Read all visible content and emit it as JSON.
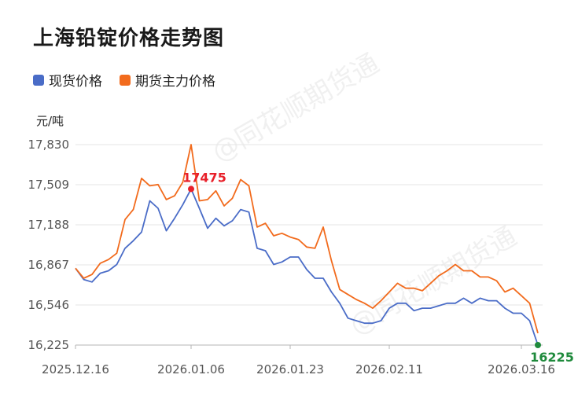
{
  "title": "上海铅锭价格走势图",
  "unit_label": "元/吨",
  "watermark": "@同花顺期货通",
  "colors": {
    "spot": "#4a6cc7",
    "futures": "#f26b1d",
    "peak_marker": "#e8202a",
    "last_marker": "#1f8a3c"
  },
  "chart_data": {
    "type": "line",
    "title": "上海铅锭价格走势图",
    "xlabel": "",
    "ylabel": "元/吨",
    "ylim": [
      16225,
      17830
    ],
    "yticks": [
      16225,
      16546,
      16867,
      17188,
      17509,
      17830
    ],
    "ytick_labels": [
      "16,225",
      "16,546",
      "16,867",
      "17,188",
      "17,509",
      "17,830"
    ],
    "xtick_labels": [
      "2025.12.16",
      "2026.01.06",
      "2026.01.23",
      "2026.02.11",
      "2026.03.16"
    ],
    "xtick_index": [
      0,
      14,
      26,
      38,
      54
    ],
    "legend_position": "top-left",
    "grid": true,
    "series": [
      {
        "name": "现货价格",
        "key": "spot",
        "values": [
          16840,
          16750,
          16730,
          16800,
          16820,
          16870,
          17000,
          17060,
          17130,
          17380,
          17320,
          17140,
          17240,
          17350,
          17475,
          17320,
          17160,
          17240,
          17180,
          17220,
          17310,
          17290,
          17000,
          16980,
          16870,
          16890,
          16930,
          16930,
          16830,
          16760,
          16760,
          16650,
          16560,
          16440,
          16420,
          16400,
          16400,
          16420,
          16520,
          16560,
          16560,
          16500,
          16520,
          16520,
          16540,
          16560,
          16560,
          16600,
          16560,
          16600,
          16580,
          16580,
          16520,
          16480,
          16480,
          16420,
          16225
        ]
      },
      {
        "name": "期货主力价格",
        "key": "futures",
        "values": [
          16840,
          16760,
          16790,
          16880,
          16910,
          16960,
          17230,
          17310,
          17560,
          17500,
          17510,
          17390,
          17420,
          17530,
          17830,
          17380,
          17390,
          17460,
          17340,
          17400,
          17550,
          17500,
          17170,
          17200,
          17100,
          17120,
          17090,
          17070,
          17010,
          17000,
          17170,
          16900,
          16670,
          16630,
          16590,
          16560,
          16520,
          16580,
          16650,
          16720,
          16680,
          16680,
          16660,
          16720,
          16780,
          16820,
          16870,
          16820,
          16820,
          16770,
          16770,
          16740,
          16650,
          16680,
          16620,
          16560,
          16320
        ]
      }
    ],
    "annotations": [
      {
        "series": "futures",
        "index": 14,
        "text": ""
      },
      {
        "series": "spot",
        "index": 14,
        "text": "17475"
      },
      {
        "series": "spot",
        "index": 56,
        "text": "16225"
      }
    ]
  }
}
